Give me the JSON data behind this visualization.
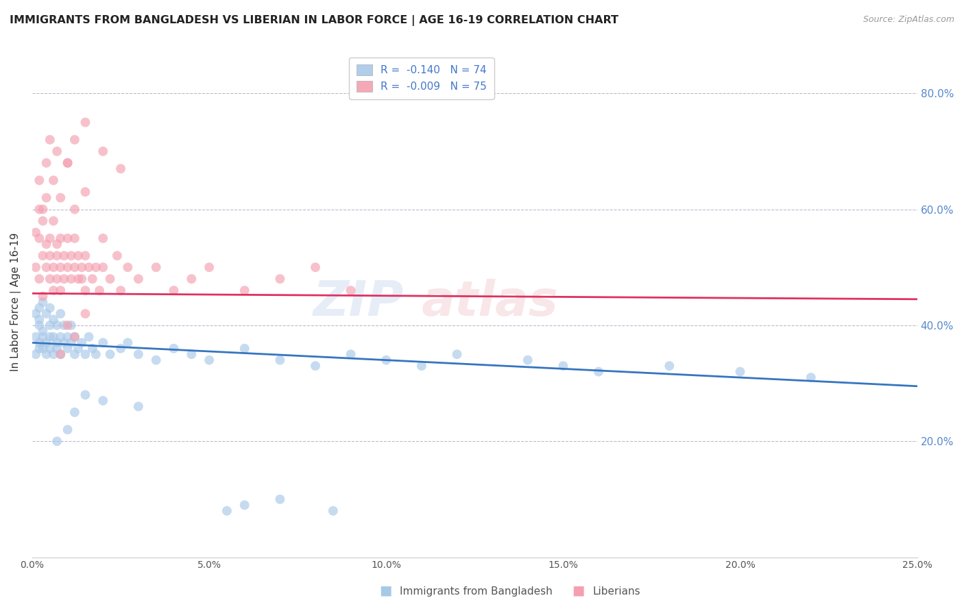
{
  "title": "IMMIGRANTS FROM BANGLADESH VS LIBERIAN IN LABOR FORCE | AGE 16-19 CORRELATION CHART",
  "source": "Source: ZipAtlas.com",
  "ylabel": "In Labor Force | Age 16-19",
  "xlim": [
    0.0,
    0.25
  ],
  "ylim": [
    0.0,
    0.88
  ],
  "xticks": [
    0.0,
    0.05,
    0.1,
    0.15,
    0.2,
    0.25
  ],
  "xtick_labels": [
    "0.0%",
    "5.0%",
    "10.0%",
    "15.0%",
    "20.0%",
    "25.0%"
  ],
  "yticks": [
    0.2,
    0.4,
    0.6,
    0.8
  ],
  "ytick_labels": [
    "20.0%",
    "40.0%",
    "60.0%",
    "80.0%"
  ],
  "legend1_label": "R =  -0.140   N = 74",
  "legend2_label": "R =  -0.009   N = 75",
  "bottom_legend1": "Immigrants from Bangladesh",
  "bottom_legend2": "Liberians",
  "blue_color": "#a8c8e8",
  "pink_color": "#f4a0b0",
  "blue_line_color": "#3575c0",
  "pink_line_color": "#e03060",
  "bangladesh_x": [
    0.001,
    0.001,
    0.001,
    0.002,
    0.002,
    0.002,
    0.002,
    0.002,
    0.003,
    0.003,
    0.003,
    0.003,
    0.004,
    0.004,
    0.004,
    0.005,
    0.005,
    0.005,
    0.005,
    0.006,
    0.006,
    0.006,
    0.007,
    0.007,
    0.007,
    0.008,
    0.008,
    0.008,
    0.009,
    0.009,
    0.01,
    0.01,
    0.011,
    0.011,
    0.012,
    0.012,
    0.013,
    0.014,
    0.015,
    0.016,
    0.017,
    0.018,
    0.02,
    0.022,
    0.025,
    0.027,
    0.03,
    0.035,
    0.04,
    0.045,
    0.05,
    0.06,
    0.07,
    0.08,
    0.09,
    0.1,
    0.11,
    0.12,
    0.14,
    0.15,
    0.16,
    0.18,
    0.2,
    0.22,
    0.007,
    0.01,
    0.012,
    0.015,
    0.02,
    0.03,
    0.055,
    0.06,
    0.07,
    0.085
  ],
  "bangladesh_y": [
    0.38,
    0.42,
    0.35,
    0.4,
    0.37,
    0.43,
    0.36,
    0.41,
    0.39,
    0.44,
    0.38,
    0.36,
    0.37,
    0.42,
    0.35,
    0.4,
    0.38,
    0.36,
    0.43,
    0.38,
    0.35,
    0.41,
    0.37,
    0.4,
    0.36,
    0.38,
    0.42,
    0.35,
    0.4,
    0.37,
    0.38,
    0.36,
    0.4,
    0.37,
    0.35,
    0.38,
    0.36,
    0.37,
    0.35,
    0.38,
    0.36,
    0.35,
    0.37,
    0.35,
    0.36,
    0.37,
    0.35,
    0.34,
    0.36,
    0.35,
    0.34,
    0.36,
    0.34,
    0.33,
    0.35,
    0.34,
    0.33,
    0.35,
    0.34,
    0.33,
    0.32,
    0.33,
    0.32,
    0.31,
    0.2,
    0.22,
    0.25,
    0.28,
    0.27,
    0.26,
    0.08,
    0.09,
    0.1,
    0.08
  ],
  "liberian_x": [
    0.001,
    0.001,
    0.002,
    0.002,
    0.002,
    0.003,
    0.003,
    0.003,
    0.004,
    0.004,
    0.004,
    0.005,
    0.005,
    0.005,
    0.006,
    0.006,
    0.006,
    0.007,
    0.007,
    0.007,
    0.008,
    0.008,
    0.008,
    0.009,
    0.009,
    0.01,
    0.01,
    0.011,
    0.011,
    0.012,
    0.012,
    0.013,
    0.013,
    0.014,
    0.014,
    0.015,
    0.015,
    0.016,
    0.017,
    0.018,
    0.019,
    0.02,
    0.022,
    0.024,
    0.025,
    0.027,
    0.03,
    0.035,
    0.04,
    0.045,
    0.05,
    0.06,
    0.07,
    0.08,
    0.09,
    0.002,
    0.003,
    0.004,
    0.005,
    0.006,
    0.007,
    0.008,
    0.01,
    0.012,
    0.015,
    0.02,
    0.008,
    0.01,
    0.012,
    0.015,
    0.01,
    0.012,
    0.015,
    0.02,
    0.025
  ],
  "liberian_y": [
    0.5,
    0.56,
    0.48,
    0.55,
    0.6,
    0.52,
    0.58,
    0.45,
    0.54,
    0.5,
    0.62,
    0.48,
    0.55,
    0.52,
    0.46,
    0.58,
    0.5,
    0.54,
    0.48,
    0.52,
    0.46,
    0.5,
    0.55,
    0.48,
    0.52,
    0.5,
    0.55,
    0.48,
    0.52,
    0.5,
    0.55,
    0.48,
    0.52,
    0.5,
    0.48,
    0.52,
    0.46,
    0.5,
    0.48,
    0.5,
    0.46,
    0.5,
    0.48,
    0.52,
    0.46,
    0.5,
    0.48,
    0.5,
    0.46,
    0.48,
    0.5,
    0.46,
    0.48,
    0.5,
    0.46,
    0.65,
    0.6,
    0.68,
    0.72,
    0.65,
    0.7,
    0.62,
    0.68,
    0.6,
    0.63,
    0.55,
    0.35,
    0.4,
    0.38,
    0.42,
    0.68,
    0.72,
    0.75,
    0.7,
    0.67
  ]
}
